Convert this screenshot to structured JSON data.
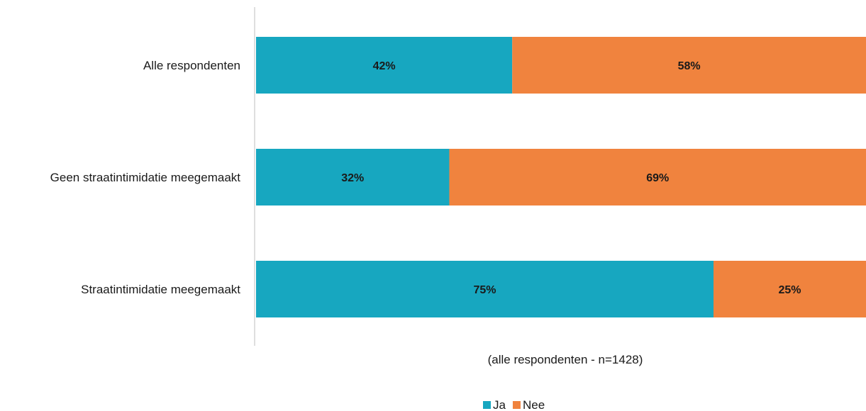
{
  "chart_data": {
    "type": "bar",
    "orientation": "horizontal",
    "stacked": true,
    "categories": [
      "Alle respondenten",
      "Geen straatintimidatie meegemaakt",
      "Straatintimidatie meegemaakt"
    ],
    "series": [
      {
        "name": "Ja",
        "values": [
          42,
          32,
          75
        ],
        "labels": [
          "42%",
          "32%",
          "75%"
        ],
        "color": "#17a7c0"
      },
      {
        "name": "Nee",
        "values": [
          58,
          69,
          25
        ],
        "labels": [
          "58%",
          "69%",
          "25%"
        ],
        "color": "#f0833e"
      }
    ],
    "xlabel": "(alle respondenten - n=1428)",
    "xlim": [
      0,
      100
    ],
    "grid": false,
    "legend_position": "bottom"
  }
}
